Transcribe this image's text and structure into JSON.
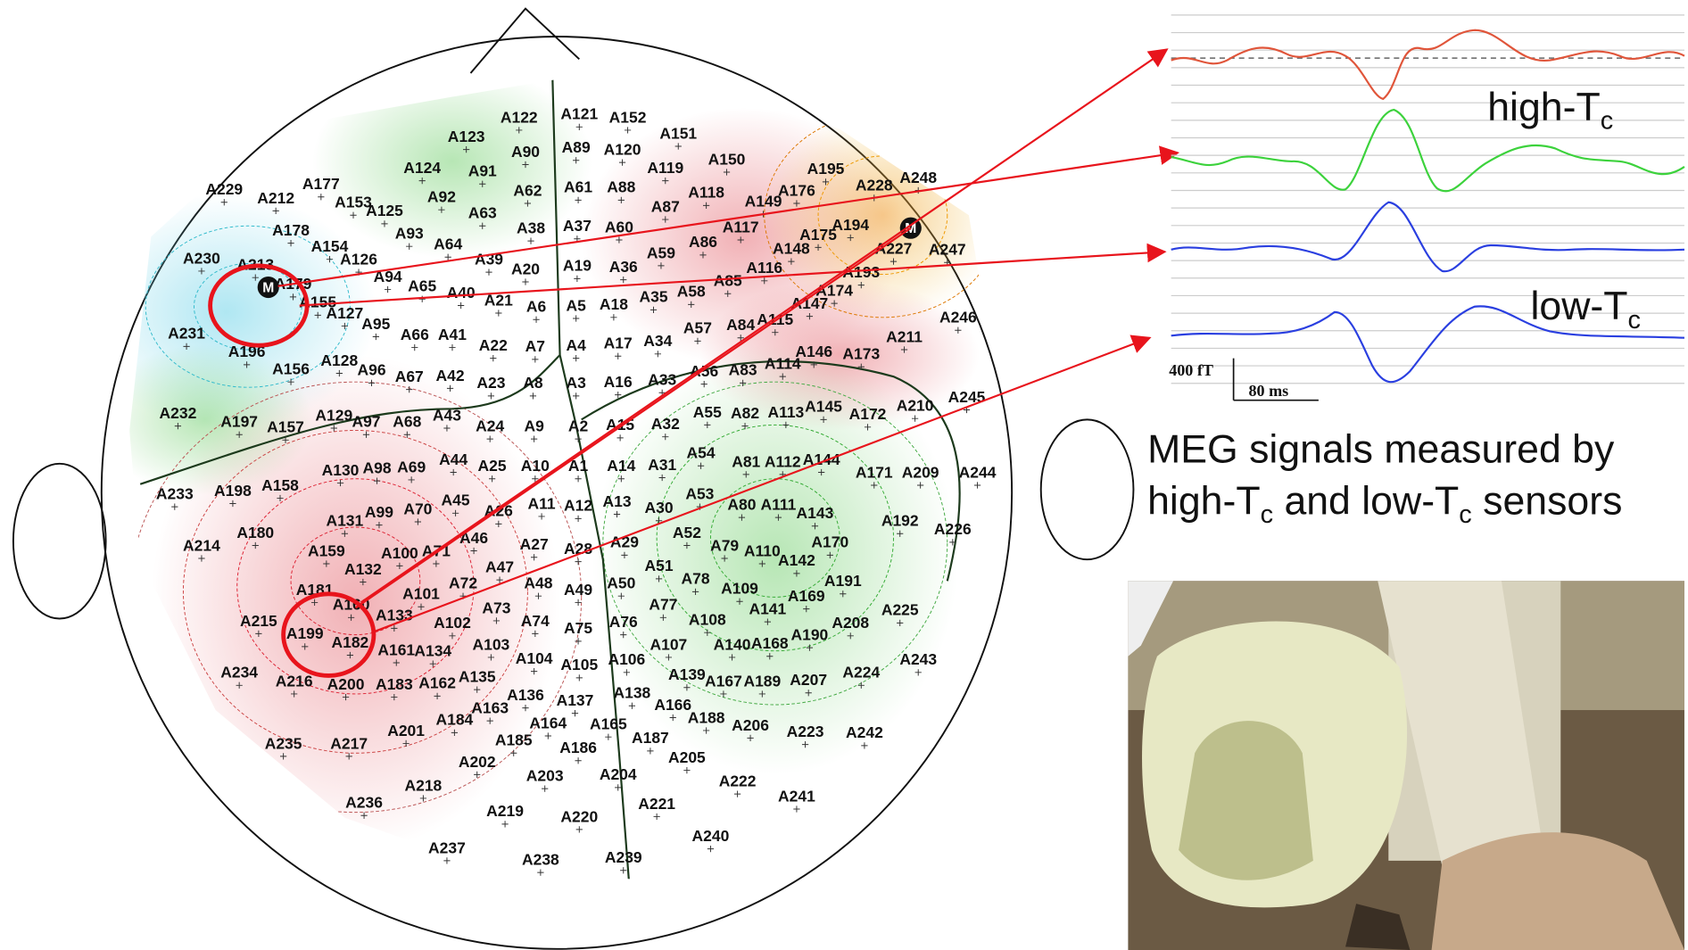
{
  "head_map": {
    "sensors": [
      "A122",
      "A121",
      "A152",
      "A123",
      "A151",
      "A90",
      "A89",
      "A120",
      "A150",
      "A124",
      "A91",
      "A119",
      "A195",
      "A248",
      "A229",
      "A177",
      "A62",
      "A61",
      "A88",
      "A118",
      "A176",
      "A228",
      "A212",
      "A153",
      "A92",
      "A149",
      "A125",
      "A63",
      "A87",
      "A178",
      "A38",
      "A37",
      "A60",
      "A117",
      "A194",
      "A93",
      "A64",
      "A154",
      "A175",
      "A86",
      "A148",
      "A227",
      "A247",
      "A230",
      "A213",
      "A126",
      "A39",
      "A59",
      "A20",
      "A19",
      "A36",
      "A116",
      "A193",
      "A179",
      "A94",
      "A65",
      "A40",
      "A21",
      "A6",
      "A5",
      "A18",
      "A35",
      "A58",
      "A85",
      "A174",
      "A155",
      "A127",
      "A147",
      "A246",
      "A95",
      "A66",
      "A41",
      "A57",
      "A84",
      "A115",
      "A231",
      "A22",
      "A7",
      "A4",
      "A17",
      "A34",
      "A211",
      "A196",
      "A146",
      "A173",
      "A128",
      "A96",
      "A67",
      "A42",
      "A56",
      "A83",
      "A114",
      "A156",
      "A23",
      "A8",
      "A3",
      "A16",
      "A33",
      "A232",
      "A197",
      "A157",
      "A129",
      "A97",
      "A68",
      "A43",
      "A24",
      "A9",
      "A2",
      "A15",
      "A32",
      "A55",
      "A82",
      "A113",
      "A145",
      "A172",
      "A210",
      "A245",
      "A130",
      "A98",
      "A69",
      "A44",
      "A25",
      "A10",
      "A1",
      "A14",
      "A31",
      "A54",
      "A81",
      "A112",
      "A144",
      "A171",
      "A209",
      "A244",
      "A233",
      "A198",
      "A158",
      "A53",
      "A80",
      "A111",
      "A143",
      "A99",
      "A70",
      "A45",
      "A26",
      "A11",
      "A12",
      "A13",
      "A30",
      "A131",
      "A192",
      "A226",
      "A214",
      "A180",
      "A46",
      "A52",
      "A170",
      "A159",
      "A100",
      "A71",
      "A27",
      "A28",
      "A29",
      "A79",
      "A110",
      "A142",
      "A132",
      "A47",
      "A51",
      "A181",
      "A72",
      "A48",
      "A49",
      "A50",
      "A78",
      "A109",
      "A169",
      "A191",
      "A160",
      "A101",
      "A73",
      "A77",
      "A141",
      "A215",
      "A133",
      "A74",
      "A75",
      "A76",
      "A108",
      "A208",
      "A225",
      "A199",
      "A182",
      "A102",
      "A190",
      "A168",
      "A140",
      "A161",
      "A134",
      "A103",
      "A107",
      "A104",
      "A105",
      "A106",
      "A243",
      "A234",
      "A216",
      "A200",
      "A183",
      "A162",
      "A135",
      "A139",
      "A167",
      "A189",
      "A207",
      "A224",
      "A136",
      "A137",
      "A138",
      "A163",
      "A166",
      "A184",
      "A188",
      "A206",
      "A223",
      "A242",
      "A164",
      "A165",
      "A201",
      "A185",
      "A187",
      "A235",
      "A217",
      "A186",
      "A202",
      "A205",
      "A222",
      "A218",
      "A203",
      "A204",
      "A241",
      "A236",
      "A219",
      "A221",
      "A220",
      "A240",
      "A237",
      "A238",
      "A239"
    ],
    "markers": [
      "M",
      "M"
    ]
  },
  "traces": {
    "high_label": {
      "main": "high-T",
      "sub": "c"
    },
    "low_label": {
      "main": "low-T",
      "sub": "c"
    },
    "scale_amplitude": "400 fT",
    "scale_time": "80 ms"
  },
  "caption": {
    "line1": "MEG signals measured by",
    "line2": [
      "high-T",
      "c",
      " and low-T",
      "c",
      " sensors"
    ]
  }
}
